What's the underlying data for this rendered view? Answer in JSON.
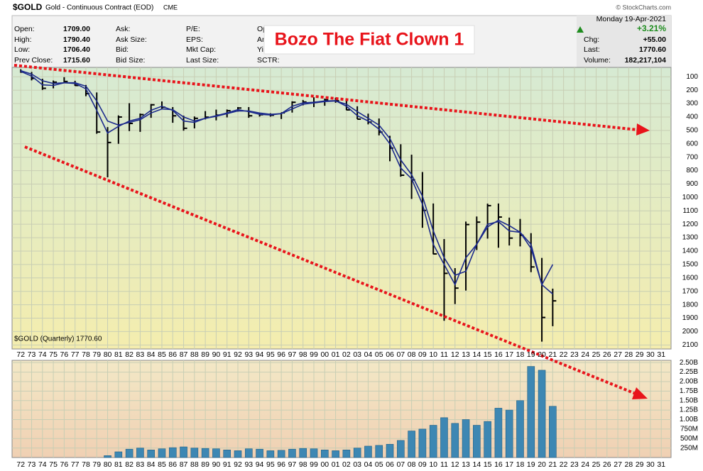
{
  "header": {
    "symbol": "$GOLD",
    "description": "Gold - Continuous Contract (EOD)",
    "exchange": "CME",
    "copyright": "© StockCharts.com",
    "col1": [
      {
        "label": "Open:",
        "value": "1709.00"
      },
      {
        "label": "High:",
        "value": "1790.40"
      },
      {
        "label": "Low:",
        "value": "1706.40"
      },
      {
        "label": "Prev Close:",
        "value": "1715.60"
      }
    ],
    "col2": [
      "Ask:",
      "Ask Size:",
      "Bid:",
      "Bid Size:"
    ],
    "col3": [
      "P/E:",
      "EPS:",
      "Mkt Cap:",
      "Last Size:"
    ],
    "col4": [
      "Opt",
      "An",
      "Yi",
      "SCTR:"
    ],
    "day": "Monday",
    "date": "19-Apr-2021",
    "change_pct": "+3.21%",
    "right": [
      {
        "label": "Chg:",
        "value": "+55.00"
      },
      {
        "label": "Last:",
        "value": "1770.60"
      },
      {
        "label": "Volume:",
        "value": "182,217,104"
      }
    ],
    "annotation": "Bozo The Fiat Clown 1"
  },
  "chart_data": {
    "type": "ohlc",
    "label": "$GOLD (Quarterly) 1770.60",
    "color": "#000000",
    "grid": true,
    "x": [
      1972,
      1973,
      1974,
      1975,
      1976,
      1977,
      1978,
      1979,
      1980,
      1981,
      1982,
      1983,
      1984,
      1985,
      1986,
      1987,
      1988,
      1989,
      1990,
      1991,
      1992,
      1993,
      1994,
      1995,
      1996,
      1997,
      1998,
      1999,
      2000,
      2001,
      2002,
      2003,
      2004,
      2005,
      2006,
      2007,
      2008,
      2009,
      2010,
      2011,
      2012,
      2013,
      2014,
      2015,
      2016,
      2017,
      2018,
      2019,
      2020,
      2021
    ],
    "high": [
      70,
      127,
      198,
      186,
      141,
      168,
      245,
      525,
      850,
      600,
      505,
      511,
      406,
      341,
      443,
      502,
      485,
      418,
      425,
      403,
      360,
      406,
      397,
      397,
      415,
      367,
      313,
      326,
      316,
      294,
      349,
      416,
      455,
      537,
      730,
      845,
      1011,
      1226,
      1424,
      1920,
      1795,
      1694,
      1392,
      1307,
      1375,
      1358,
      1365,
      1557,
      2075,
      1960
    ],
    "low": [
      44,
      64,
      115,
      128,
      103,
      130,
      161,
      217,
      475,
      388,
      297,
      374,
      303,
      284,
      326,
      390,
      396,
      356,
      345,
      344,
      326,
      326,
      370,
      372,
      367,
      283,
      273,
      253,
      263,
      256,
      277,
      320,
      375,
      411,
      540,
      603,
      681,
      810,
      1045,
      1310,
      1527,
      1180,
      1142,
      1046,
      1045,
      1150,
      1160,
      1266,
      1451,
      1680
    ],
    "close": [
      65,
      112,
      186,
      140,
      135,
      165,
      226,
      512,
      590,
      400,
      448,
      382,
      309,
      327,
      391,
      484,
      410,
      401,
      386,
      353,
      333,
      391,
      383,
      387,
      369,
      290,
      288,
      290,
      272,
      279,
      347,
      416,
      438,
      513,
      632,
      834,
      869,
      1097,
      1421,
      1566,
      1676,
      1202,
      1184,
      1061,
      1146,
      1303,
      1282,
      1518,
      1895,
      1771
    ],
    "averages": [
      {
        "color": "#1c2a8c",
        "values": [
          60,
          95,
          160,
          165,
          145,
          150,
          190,
          350,
          520,
          470,
          430,
          410,
          350,
          320,
          350,
          430,
          440,
          410,
          390,
          370,
          345,
          360,
          380,
          385,
          375,
          320,
          295,
          290,
          280,
          278,
          320,
          390,
          430,
          490,
          600,
          780,
          860,
          1050,
          1350,
          1500,
          1650,
          1450,
          1350,
          1200,
          1180,
          1250,
          1260,
          1350,
          1650,
          1500
        ]
      },
      {
        "color": "#1c2a8c",
        "values": [
          55,
          80,
          130,
          150,
          145,
          145,
          170,
          280,
          430,
          460,
          440,
          420,
          370,
          340,
          345,
          400,
          430,
          410,
          395,
          375,
          355,
          355,
          370,
          380,
          375,
          340,
          305,
          295,
          285,
          280,
          305,
          360,
          410,
          460,
          560,
          720,
          830,
          990,
          1250,
          1450,
          1580,
          1550,
          1350,
          1220,
          1170,
          1210,
          1260,
          1380,
          1650,
          1720
        ]
      }
    ],
    "ylim": [
      2130,
      30
    ],
    "yticks": [
      100,
      200,
      300,
      400,
      500,
      600,
      700,
      800,
      900,
      1000,
      1100,
      1200,
      1300,
      1400,
      1500,
      1600,
      1700,
      1800,
      1900,
      2000,
      2100
    ],
    "xlim": [
      1971.2,
      2031.9
    ],
    "xticks": [
      {
        "value": 1972,
        "label": "72"
      },
      {
        "value": 1973,
        "label": "73"
      },
      {
        "value": 1974,
        "label": "74"
      },
      {
        "value": 1975,
        "label": "75"
      },
      {
        "value": 1976,
        "label": "76"
      },
      {
        "value": 1977,
        "label": "77"
      },
      {
        "value": 1978,
        "label": "78"
      },
      {
        "value": 1979,
        "label": "79"
      },
      {
        "value": 1980,
        "label": "80"
      },
      {
        "value": 1981,
        "label": "81"
      },
      {
        "value": 1982,
        "label": "82"
      },
      {
        "value": 1983,
        "label": "83"
      },
      {
        "value": 1984,
        "label": "84"
      },
      {
        "value": 1985,
        "label": "85"
      },
      {
        "value": 1986,
        "label": "86"
      },
      {
        "value": 1987,
        "label": "87"
      },
      {
        "value": 1988,
        "label": "88"
      },
      {
        "value": 1989,
        "label": "89"
      },
      {
        "value": 1990,
        "label": "90"
      },
      {
        "value": 1991,
        "label": "91"
      },
      {
        "value": 1992,
        "label": "92"
      },
      {
        "value": 1993,
        "label": "93"
      },
      {
        "value": 1994,
        "label": "94"
      },
      {
        "value": 1995,
        "label": "95"
      },
      {
        "value": 1996,
        "label": "96"
      },
      {
        "value": 1997,
        "label": "97"
      },
      {
        "value": 1998,
        "label": "98"
      },
      {
        "value": 1999,
        "label": "99"
      },
      {
        "value": 2000,
        "label": "00"
      },
      {
        "value": 2001,
        "label": "01"
      },
      {
        "value": 2002,
        "label": "02"
      },
      {
        "value": 2003,
        "label": "03"
      },
      {
        "value": 2004,
        "label": "04"
      },
      {
        "value": 2005,
        "label": "05"
      },
      {
        "value": 2006,
        "label": "06"
      },
      {
        "value": 2007,
        "label": "07"
      },
      {
        "value": 2008,
        "label": "08"
      },
      {
        "value": 2009,
        "label": "09"
      },
      {
        "value": 2010,
        "label": "10"
      },
      {
        "value": 2011,
        "label": "11"
      },
      {
        "value": 2012,
        "label": "12"
      },
      {
        "value": 2013,
        "label": "13"
      },
      {
        "value": 2014,
        "label": "14"
      },
      {
        "value": 2015,
        "label": "15"
      },
      {
        "value": 2016,
        "label": "16"
      },
      {
        "value": 2017,
        "label": "17"
      },
      {
        "value": 2018,
        "label": "18"
      },
      {
        "value": 2019,
        "label": "19"
      },
      {
        "value": 2020,
        "label": "20"
      },
      {
        "value": 2021,
        "label": "21"
      },
      {
        "value": 2022,
        "label": "22"
      },
      {
        "value": 2023,
        "label": "23"
      },
      {
        "value": 2024,
        "label": "24"
      },
      {
        "value": 2025,
        "label": "25"
      },
      {
        "value": 2026,
        "label": "26"
      },
      {
        "value": 2027,
        "label": "27"
      },
      {
        "value": 2028,
        "label": "28"
      },
      {
        "value": 2029,
        "label": "29"
      },
      {
        "value": 2030,
        "label": "30"
      },
      {
        "value": 2031,
        "label": "31"
      }
    ],
    "volume": {
      "color": "#3d87b3",
      "values": [
        null,
        null,
        null,
        null,
        null,
        null,
        null,
        null,
        50000000,
        150000000,
        220000000,
        250000000,
        200000000,
        230000000,
        260000000,
        280000000,
        250000000,
        240000000,
        230000000,
        200000000,
        180000000,
        230000000,
        220000000,
        180000000,
        190000000,
        220000000,
        240000000,
        230000000,
        200000000,
        180000000,
        200000000,
        250000000,
        300000000,
        320000000,
        350000000,
        450000000,
        700000000,
        750000000,
        850000000,
        1050000000,
        900000000,
        1000000000,
        850000000,
        950000000,
        1300000000,
        1250000000,
        1500000000,
        2400000000,
        2300000000,
        1350000000
      ],
      "ylim": [
        0,
        2560000000
      ],
      "yticks": [
        {
          "value": 250000000,
          "label": "250M"
        },
        {
          "value": 500000000,
          "label": "500M"
        },
        {
          "value": 750000000,
          "label": "750M"
        },
        {
          "value": 1000000000,
          "label": "1.00B"
        },
        {
          "value": 1250000000,
          "label": "1.25B"
        },
        {
          "value": 1500000000,
          "label": "1.50B"
        },
        {
          "value": 1750000000,
          "label": "1.75B"
        },
        {
          "value": 2000000000,
          "label": "2.00B"
        },
        {
          "value": 2250000000,
          "label": "2.25B"
        },
        {
          "value": 2500000000,
          "label": "2.50B"
        }
      ]
    }
  }
}
